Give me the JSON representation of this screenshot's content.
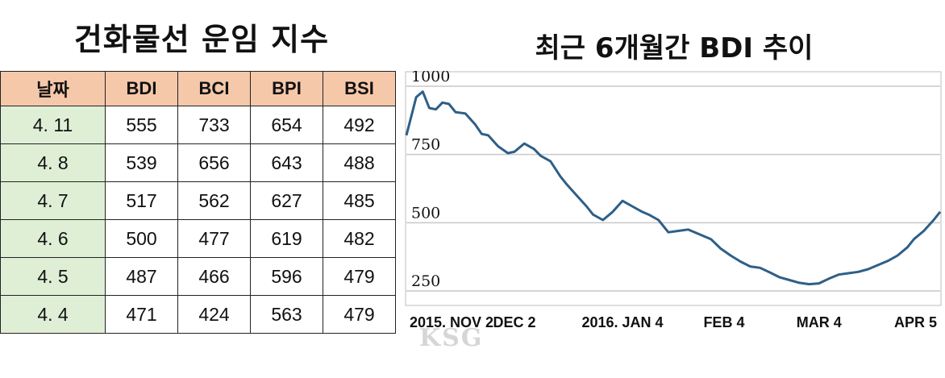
{
  "left_title": "건화물선 운임 지수",
  "table": {
    "headers": [
      "날짜",
      "BDI",
      "BCI",
      "BPI",
      "BSI"
    ],
    "rows": [
      [
        "4. 11",
        "555",
        "733",
        "654",
        "492"
      ],
      [
        "4. 8",
        "539",
        "656",
        "643",
        "488"
      ],
      [
        "4. 7",
        "517",
        "562",
        "627",
        "485"
      ],
      [
        "4. 6",
        "500",
        "477",
        "619",
        "482"
      ],
      [
        "4. 5",
        "487",
        "466",
        "596",
        "479"
      ],
      [
        "4. 4",
        "471",
        "424",
        "563",
        "479"
      ]
    ]
  },
  "watermark": "KSG",
  "chart_data": {
    "type": "line",
    "title": "최근 6개월간 BDI 추이",
    "x_tick_labels": [
      "2015. NOV 2",
      "DEC 2",
      "2016. JAN 4",
      "FEB 4",
      "MAR 4",
      "APR 5"
    ],
    "x_tick_days": [
      0,
      30,
      63,
      94,
      123,
      155
    ],
    "y_ticks": [
      250,
      500,
      750,
      1000
    ],
    "ylim": [
      200,
      1050
    ],
    "grid": true,
    "line_color": "#2e5f88",
    "series": [
      {
        "x": [
          -3,
          0,
          2,
          4,
          6,
          8,
          10,
          12,
          15,
          18,
          20,
          22,
          25,
          28,
          30,
          33,
          36,
          38,
          41,
          44,
          46,
          49,
          52,
          54,
          57,
          60,
          63,
          66,
          69,
          71,
          74,
          77,
          80,
          83,
          86,
          90,
          93,
          96,
          99,
          102,
          105,
          108,
          111,
          114,
          117,
          120,
          123,
          126,
          129,
          132,
          135,
          138,
          141,
          144,
          147,
          150,
          152,
          155,
          158,
          160
        ],
        "y": [
          820,
          960,
          980,
          920,
          915,
          940,
          935,
          905,
          900,
          860,
          825,
          820,
          780,
          755,
          760,
          790,
          770,
          745,
          725,
          670,
          640,
          600,
          560,
          530,
          510,
          540,
          580,
          560,
          540,
          530,
          510,
          465,
          470,
          475,
          460,
          440,
          405,
          380,
          358,
          340,
          335,
          318,
          300,
          290,
          280,
          275,
          278,
          295,
          310,
          315,
          320,
          330,
          345,
          360,
          380,
          410,
          440,
          470,
          510,
          540
        ]
      }
    ]
  }
}
